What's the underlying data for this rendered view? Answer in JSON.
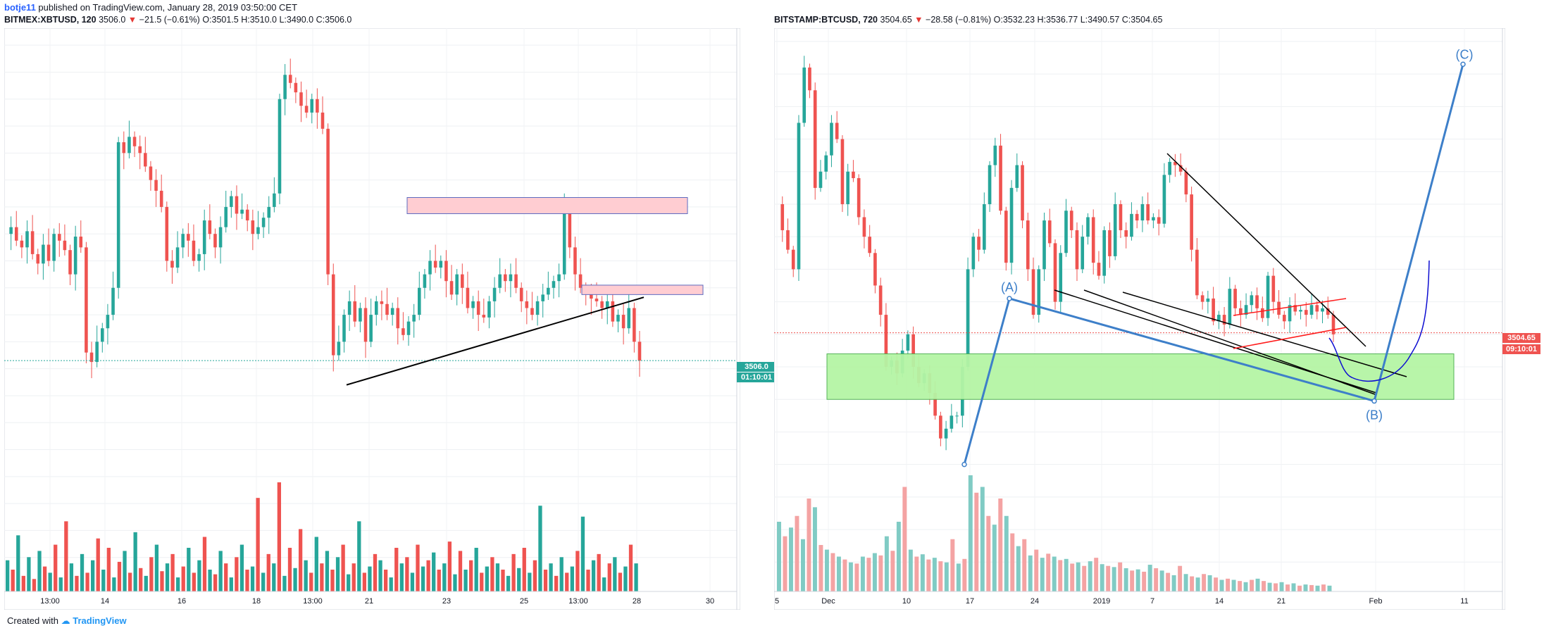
{
  "header": {
    "username": "botje11",
    "published_text": "published on TradingView.com, January 28, 2019 03:50:00 CET"
  },
  "footer": {
    "created_with": "Created with",
    "brand": "TradingView"
  },
  "colors": {
    "up": "#26a69a",
    "down": "#ef5350",
    "vol_up": "#80cbc4",
    "vol_down": "#f4a3a3",
    "wave": "#3d7fc9",
    "support_zone": "#b5f5a5",
    "resistance_zone": "#ffcdd2"
  },
  "left": {
    "legend": {
      "symbol": "BITMEX:XBTUSD, 120",
      "last": "3506.0",
      "change": "−21.5 (−0.61%)",
      "open": "O:3501.5",
      "high": "H:3510.0",
      "low": "L:3490.0",
      "close": "C:3506.0"
    },
    "price_badge": "3506.0",
    "timer_badge": "01:10:01"
  },
  "right": {
    "legend": {
      "symbol": "BITSTAMP:BTCUSD, 720",
      "last": "3504.65",
      "change": "−28.58 (−0.81%)",
      "open": "O:3532.23",
      "high": "H:3536.77",
      "low": "L:3490.57",
      "close": "C:3504.65"
    },
    "price_badge": "3504.65",
    "timer_badge": "09:10:01",
    "wave_labels": [
      "(A)",
      "(B)",
      "(C)"
    ]
  },
  "chart_data": [
    {
      "type": "candlestick",
      "symbol": "BITMEX:XBTUSD",
      "interval": "120",
      "ylim": [
        3340,
        3750
      ],
      "yticks": [
        3360,
        3380,
        3400,
        3420,
        3440,
        3460,
        3480,
        3500,
        3520,
        3540,
        3560,
        3580,
        3600,
        3620,
        3640,
        3660,
        3680,
        3700,
        3720,
        3740
      ],
      "x_tick_labels": [
        "13:00",
        "14",
        "16",
        "18",
        "13:00",
        "21",
        "23",
        "25",
        "13:00",
        "28",
        "30"
      ],
      "last_price": 3506.0,
      "path": [
        3600,
        3605,
        3595,
        3590,
        3602,
        3585,
        3578,
        3592,
        3580,
        3600,
        3595,
        3588,
        3570,
        3598,
        3590,
        3512,
        3505,
        3520,
        3530,
        3540,
        3560,
        3668,
        3660,
        3672,
        3665,
        3660,
        3650,
        3640,
        3632,
        3620,
        3580,
        3575,
        3590,
        3600,
        3595,
        3580,
        3585,
        3610,
        3600,
        3590,
        3605,
        3620,
        3628,
        3615,
        3618,
        3610,
        3600,
        3605,
        3612,
        3620,
        3630,
        3700,
        3718,
        3712,
        3705,
        3695,
        3690,
        3700,
        3690,
        3678,
        3570,
        3510,
        3520,
        3540,
        3550,
        3535,
        3545,
        3520,
        3540,
        3550,
        3548,
        3540,
        3545,
        3530,
        3525,
        3535,
        3540,
        3560,
        3570,
        3580,
        3575,
        3580,
        3565,
        3555,
        3570,
        3560,
        3545,
        3550,
        3540,
        3538,
        3550,
        3560,
        3570,
        3565,
        3570,
        3560,
        3550,
        3545,
        3540,
        3550,
        3555,
        3560,
        3565,
        3570,
        3618,
        3590,
        3570,
        3560,
        3555,
        3552,
        3550,
        3545,
        3550,
        3535,
        3540,
        3530,
        3545,
        3520,
        3506
      ],
      "volume_path": [
        20,
        14,
        36,
        10,
        22,
        8,
        26,
        16,
        12,
        30,
        9,
        45,
        18,
        10,
        24,
        12,
        20,
        34,
        14,
        28,
        9,
        19,
        26,
        12,
        38,
        15,
        10,
        22,
        30,
        13,
        18,
        24,
        9,
        16,
        28,
        12,
        20,
        35,
        14,
        11,
        26,
        18,
        9,
        22,
        30,
        14,
        16,
        60,
        12,
        24,
        18,
        70,
        10,
        28,
        15,
        40,
        20,
        12,
        35,
        18,
        26,
        14,
        22,
        30,
        11,
        18,
        45,
        12,
        16,
        24,
        20,
        14,
        9,
        28,
        18,
        22,
        12,
        30,
        16,
        20,
        25,
        14,
        18,
        32,
        11,
        26,
        14,
        20,
        28,
        12,
        16,
        22,
        18,
        14,
        10,
        24,
        15,
        28,
        12,
        20,
        55,
        14,
        18,
        10,
        22,
        12,
        16,
        26,
        48,
        14,
        20,
        24,
        9,
        18,
        22,
        12,
        16,
        30,
        18
      ],
      "annotations": {
        "resistance_zone_1": [
          3615,
          3627
        ],
        "resistance_zone_2": [
          3555,
          3562
        ],
        "trendline": [
          [
            3488,
            3553
          ]
        ]
      }
    },
    {
      "type": "candlestick",
      "symbol": "BITSTAMP:BTCUSD",
      "interval": "720",
      "ylim": [
        2740,
        4415
      ],
      "yticks": [
        2800,
        2900,
        3000,
        3100,
        3200,
        3300,
        3400,
        3500,
        3600,
        3700,
        3800,
        3900,
        4000,
        4100,
        4200,
        4300,
        4400
      ],
      "x_tick_labels": [
        "5",
        "Dec",
        "10",
        "17",
        "24",
        "2019",
        "7",
        "14",
        "21",
        "Feb",
        "11"
      ],
      "last_price": 3504.65,
      "path": [
        3900,
        3820,
        3760,
        3700,
        4150,
        4320,
        4250,
        3950,
        4000,
        4050,
        4150,
        4100,
        3900,
        4000,
        3980,
        3860,
        3800,
        3750,
        3650,
        3560,
        3400,
        3420,
        3380,
        3450,
        3500,
        3400,
        3350,
        3380,
        3320,
        3250,
        3180,
        3210,
        3250,
        3250,
        3400,
        3700,
        3800,
        3760,
        3900,
        4020,
        4080,
        3880,
        3720,
        3950,
        4020,
        3850,
        3700,
        3560,
        3700,
        3850,
        3780,
        3600,
        3750,
        3880,
        3820,
        3700,
        3800,
        3860,
        3720,
        3680,
        3820,
        3740,
        3900,
        3820,
        3800,
        3870,
        3850,
        3900,
        3850,
        3860,
        3840,
        3990,
        4030,
        4020,
        4000,
        3930,
        3760,
        3620,
        3600,
        3610,
        3540,
        3560,
        3530,
        3640,
        3580,
        3560,
        3590,
        3620,
        3580,
        3550,
        3680,
        3600,
        3560,
        3540,
        3590,
        3570,
        3575,
        3560,
        3590,
        3570,
        3580,
        3560,
        3500
      ],
      "volume_path": [
        120,
        95,
        110,
        130,
        90,
        160,
        145,
        80,
        72,
        66,
        60,
        55,
        50,
        48,
        60,
        58,
        66,
        62,
        95,
        70,
        120,
        180,
        72,
        60,
        64,
        55,
        58,
        52,
        50,
        90,
        48,
        56,
        200,
        170,
        180,
        130,
        115,
        160,
        130,
        100,
        78,
        90,
        62,
        72,
        58,
        65,
        60,
        54,
        56,
        48,
        50,
        44,
        52,
        58,
        47,
        44,
        42,
        50,
        40,
        36,
        38,
        34,
        46,
        40,
        36,
        32,
        28,
        44,
        30,
        26,
        24,
        30,
        28,
        24,
        20,
        22,
        20,
        18,
        16,
        20,
        22,
        18,
        15,
        14,
        16,
        12,
        14,
        10,
        12,
        11,
        10,
        12,
        10
      ],
      "annotations": {
        "support_zone": [
          3300,
          3440
        ],
        "wave_points": {
          "start": 3100,
          "A": 3610,
          "B": 3295,
          "C": 4330
        }
      }
    }
  ]
}
